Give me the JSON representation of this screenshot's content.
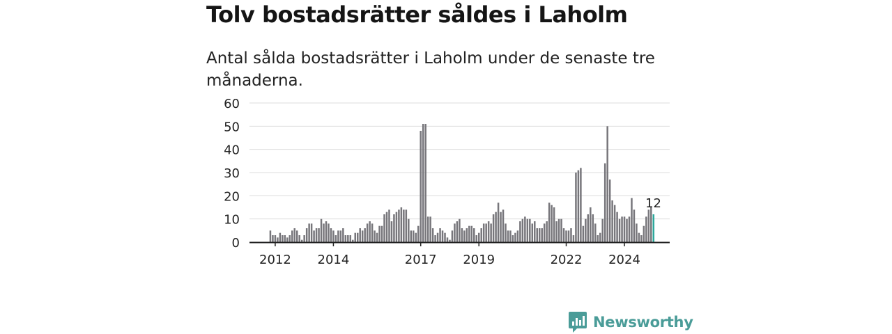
{
  "title": "Tolv bostadsrätter såldes i Laholm",
  "subtitle": "Antal sålda bostadsrätter i Laholm under de senaste tre månaderna.",
  "brand": {
    "name": "Newsworthy",
    "icon": "newsworthy-logo-icon"
  },
  "colors": {
    "bar": "#77767b",
    "highlight": "#2ca89c",
    "grid": "#dcdcdc",
    "axis": "#222222",
    "brand": "#4a9c98"
  },
  "chart_data": {
    "type": "bar",
    "title": "Tolv bostadsrätter såldes i Laholm",
    "xlabel": "",
    "ylabel": "",
    "ylim": [
      0,
      60
    ],
    "yticks": [
      0,
      10,
      20,
      30,
      40,
      50,
      60
    ],
    "xtick_labels": [
      "2012",
      "2014",
      "2017",
      "2019",
      "2022",
      "2024"
    ],
    "xtick_months": [
      "2012-01",
      "2014-01",
      "2017-01",
      "2019-01",
      "2022-01",
      "2024-01"
    ],
    "grid": true,
    "highlight_label": "12",
    "first_month": "2011-11",
    "values": [
      5,
      3,
      3,
      2,
      4,
      3,
      3,
      2,
      3,
      5,
      6,
      5,
      3,
      1,
      3,
      6,
      8,
      8,
      5,
      6,
      6,
      10,
      8,
      9,
      8,
      6,
      5,
      3,
      5,
      5,
      6,
      3,
      3,
      3,
      1,
      4,
      4,
      6,
      5,
      6,
      8,
      9,
      8,
      5,
      4,
      7,
      7,
      12,
      13,
      14,
      9,
      12,
      13,
      14,
      15,
      14,
      14,
      10,
      5,
      5,
      4,
      7,
      48,
      51,
      51,
      11,
      11,
      6,
      3,
      4,
      6,
      5,
      4,
      2,
      1,
      5,
      8,
      9,
      10,
      6,
      5,
      6,
      7,
      7,
      6,
      3,
      4,
      6,
      8,
      8,
      9,
      8,
      12,
      13,
      17,
      13,
      14,
      8,
      5,
      5,
      3,
      4,
      5,
      9,
      10,
      11,
      10,
      10,
      8,
      9,
      6,
      6,
      6,
      8,
      9,
      17,
      16,
      15,
      9,
      10,
      10,
      6,
      5,
      5,
      6,
      3,
      30,
      31,
      32,
      7,
      10,
      12,
      15,
      12,
      8,
      3,
      4,
      10,
      34,
      50,
      27,
      18,
      16,
      13,
      10,
      11,
      11,
      10,
      11,
      19,
      14,
      8,
      4,
      3,
      7,
      11,
      14,
      15,
      12
    ]
  }
}
